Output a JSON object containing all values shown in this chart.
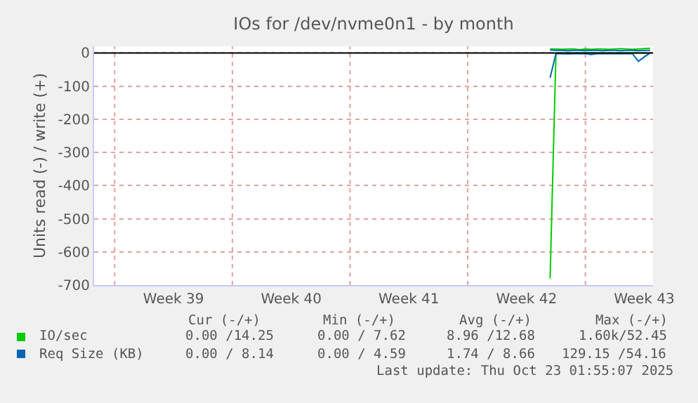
{
  "chart_data": {
    "type": "line",
    "title": "IOs for /dev/nvme0n1 - by month",
    "ylabel": "Units read (-) / write (+)",
    "categories": [
      null,
      null,
      null,
      null,
      null,
      null,
      null,
      null,
      null,
      null,
      null,
      null,
      null,
      "Week 39",
      null,
      null,
      null,
      null,
      null,
      null,
      null,
      null,
      null,
      null,
      null,
      null,
      null,
      null,
      null,
      null,
      null,
      null,
      null,
      "Week 40",
      null,
      null,
      null,
      null,
      null,
      null,
      null,
      null,
      null,
      null,
      null,
      null,
      null,
      null,
      null,
      null,
      null,
      null,
      null,
      "Week 41",
      null,
      null,
      null,
      null,
      null,
      null,
      null,
      null,
      null,
      null,
      null,
      null,
      null,
      null,
      null,
      null,
      null,
      null,
      null,
      "Week 42",
      null,
      null,
      null,
      null,
      null,
      null,
      null,
      null,
      null,
      null,
      null,
      null,
      null,
      null,
      null,
      null,
      null,
      null,
      null,
      "Week 43",
      null
    ],
    "ylim": [
      -700,
      20
    ],
    "yticks": [
      -700,
      -600,
      -500,
      -400,
      -300,
      -200,
      -100,
      0
    ],
    "grid": true,
    "legend": "bottom left",
    "ref_lines": [
      {
        "axis": "y",
        "value": 0,
        "label": null,
        "color": "#000000"
      }
    ],
    "series": [
      {
        "name": "IO/sec",
        "color": "#00cc00",
        "values": [
          null,
          null,
          null,
          null,
          null,
          null,
          null,
          null,
          null,
          null,
          null,
          null,
          null,
          null,
          null,
          null,
          null,
          null,
          null,
          null,
          null,
          null,
          null,
          null,
          null,
          null,
          null,
          null,
          null,
          null,
          null,
          null,
          null,
          null,
          null,
          null,
          null,
          null,
          null,
          null,
          null,
          null,
          null,
          null,
          null,
          null,
          null,
          null,
          null,
          null,
          null,
          null,
          null,
          null,
          null,
          null,
          null,
          null,
          null,
          null,
          null,
          null,
          null,
          null,
          null,
          null,
          null,
          null,
          null,
          null,
          null,
          null,
          null,
          null,
          null,
          null,
          null,
          12,
          12,
          11,
          12,
          12,
          10,
          12,
          11,
          12,
          12,
          11,
          12,
          13,
          12,
          11,
          12,
          13,
          14
        ]
      },
      {
        "color": "#00cc00",
        "values": [
          null,
          null,
          null,
          null,
          null,
          null,
          null,
          null,
          null,
          null,
          null,
          null,
          null,
          null,
          null,
          null,
          null,
          null,
          null,
          null,
          null,
          null,
          null,
          null,
          null,
          null,
          null,
          null,
          null,
          null,
          null,
          null,
          null,
          null,
          null,
          null,
          null,
          null,
          null,
          null,
          null,
          null,
          null,
          null,
          null,
          null,
          null,
          null,
          null,
          null,
          null,
          null,
          null,
          null,
          null,
          null,
          null,
          null,
          null,
          null,
          null,
          null,
          null,
          null,
          null,
          null,
          null,
          null,
          null,
          null,
          null,
          null,
          null,
          null,
          null,
          null,
          null,
          -680,
          0,
          0,
          0,
          0,
          0,
          0,
          0,
          0,
          0,
          0,
          0,
          0,
          0,
          0,
          0,
          0,
          0
        ]
      },
      {
        "name": "Req Size (KB)",
        "color": "#0066b3",
        "values": [
          null,
          null,
          null,
          null,
          null,
          null,
          null,
          null,
          null,
          null,
          null,
          null,
          null,
          null,
          null,
          null,
          null,
          null,
          null,
          null,
          null,
          null,
          null,
          null,
          null,
          null,
          null,
          null,
          null,
          null,
          null,
          null,
          null,
          null,
          null,
          null,
          null,
          null,
          null,
          null,
          null,
          null,
          null,
          null,
          null,
          null,
          null,
          null,
          null,
          null,
          null,
          null,
          null,
          null,
          null,
          null,
          null,
          null,
          null,
          null,
          null,
          null,
          null,
          null,
          null,
          null,
          null,
          null,
          null,
          null,
          null,
          null,
          null,
          null,
          null,
          null,
          null,
          9,
          8,
          8,
          7,
          8,
          8,
          7,
          8,
          8,
          7,
          8,
          8,
          7,
          8,
          8,
          7,
          8,
          8
        ]
      },
      {
        "color": "#0066b3",
        "values": [
          null,
          null,
          null,
          null,
          null,
          null,
          null,
          null,
          null,
          null,
          null,
          null,
          null,
          null,
          null,
          null,
          null,
          null,
          null,
          null,
          null,
          null,
          null,
          null,
          null,
          null,
          null,
          null,
          null,
          null,
          null,
          null,
          null,
          null,
          null,
          null,
          null,
          null,
          null,
          null,
          null,
          null,
          null,
          null,
          null,
          null,
          null,
          null,
          null,
          null,
          null,
          null,
          null,
          null,
          null,
          null,
          null,
          null,
          null,
          null,
          null,
          null,
          null,
          null,
          null,
          null,
          null,
          null,
          null,
          null,
          null,
          null,
          null,
          null,
          null,
          null,
          null,
          -75,
          -2,
          -2,
          -3,
          -2,
          -2,
          -2,
          -5,
          -2,
          -2,
          -2,
          -2,
          -2,
          -2,
          -2,
          -25,
          -12,
          0
        ]
      }
    ],
    "annotations": [
      "Cur (-/+)",
      "Min (-/+)",
      "Avg (-/+)",
      "Max (-/+)",
      "0.00 /14.25",
      "0.00 / 7.62",
      "8.96 /12.68",
      "1.60k/52.45",
      "0.00 / 8.14",
      "0.00 / 4.59",
      "1.74 / 8.66",
      "129.15 /54.16",
      "Last update: Thu Oct 23 01:55:07 2025"
    ]
  }
}
